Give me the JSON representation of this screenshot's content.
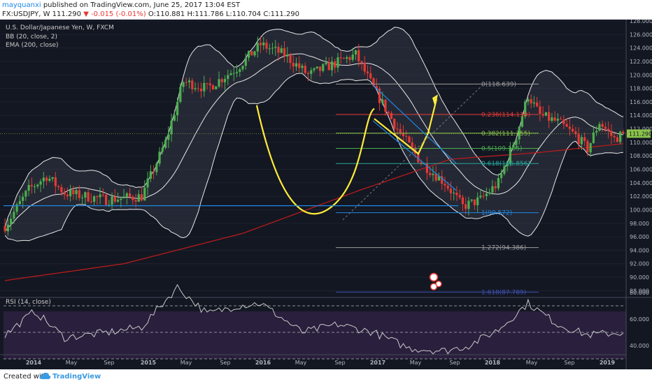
{
  "header": {
    "author": "mayquanxi",
    "published": "published on TradingView.com, June 25, 2017 13:04 EST",
    "symbol": "FX:USDJPY, W",
    "last": "111.290",
    "change": "▼ -0.015 (-0.01%)",
    "ohlc": "O:110.881 H:111.786 L:110.704 C:111.290"
  },
  "footer": {
    "created": "Created with",
    "brand": "TradingView"
  },
  "legend": {
    "title": "U.S. Dollar/Japanese Yen, W, FXCM",
    "bb": "BB (20, close, 2)",
    "ema": "EMA (200, close)",
    "rsi": "RSI (14, close)"
  },
  "colors": {
    "background": "#131722",
    "candle_up": "#4caf50",
    "candle_down": "#e53935",
    "ema": "#b71c1c",
    "bands": "#e8e8e8",
    "annotation": "#ffeb3b",
    "channel": "#1e88e5",
    "rsi_band": "#2a1f3d"
  },
  "chart_data": {
    "type": "candlestick",
    "price_axis": {
      "ylim": [
        87,
        128
      ],
      "ticks": [
        "128.000",
        "126.000",
        "124.000",
        "122.000",
        "120.000",
        "118.000",
        "116.000",
        "114.000",
        "112.000",
        "110.000",
        "108.000",
        "106.000",
        "104.000",
        "102.000",
        "100.000",
        "98.000",
        "96.000",
        "94.000",
        "92.000",
        "90.000",
        "88.000"
      ]
    },
    "time_axis": {
      "ticks": [
        "2014",
        "May",
        "Sep",
        "2015",
        "May",
        "Sep",
        "2016",
        "May",
        "Sep",
        "2017",
        "May",
        "Sep",
        "2018",
        "May",
        "Sep",
        "2019"
      ]
    },
    "current_price": "111.290",
    "price_anchors": [
      {
        "t": 0,
        "v": 97.6
      },
      {
        "t": 8,
        "v": 103
      },
      {
        "t": 14,
        "v": 105
      },
      {
        "t": 20,
        "v": 102.5
      },
      {
        "t": 34,
        "v": 101.5
      },
      {
        "t": 46,
        "v": 102
      },
      {
        "t": 54,
        "v": 110
      },
      {
        "t": 60,
        "v": 119
      },
      {
        "t": 68,
        "v": 118
      },
      {
        "t": 78,
        "v": 121
      },
      {
        "t": 86,
        "v": 124.5
      },
      {
        "t": 94,
        "v": 123
      },
      {
        "t": 102,
        "v": 120
      },
      {
        "t": 110,
        "v": 121.5
      },
      {
        "t": 118,
        "v": 123
      },
      {
        "t": 124,
        "v": 118
      },
      {
        "t": 132,
        "v": 112
      },
      {
        "t": 140,
        "v": 107
      },
      {
        "t": 148,
        "v": 104
      },
      {
        "t": 154,
        "v": 100.5
      },
      {
        "t": 160,
        "v": 101.5
      },
      {
        "t": 166,
        "v": 104
      },
      {
        "t": 172,
        "v": 111
      },
      {
        "t": 176,
        "v": 117
      },
      {
        "t": 180,
        "v": 114
      },
      {
        "t": 186,
        "v": 113
      },
      {
        "t": 192,
        "v": 111
      },
      {
        "t": 196,
        "v": 109
      },
      {
        "t": 200,
        "v": 113
      },
      {
        "t": 205,
        "v": 110.5
      },
      {
        "t": 208,
        "v": 111.3
      }
    ],
    "ema_anchors": [
      {
        "t": 0,
        "v": 89.5
      },
      {
        "t": 40,
        "v": 92
      },
      {
        "t": 80,
        "v": 96.5
      },
      {
        "t": 120,
        "v": 103
      },
      {
        "t": 150,
        "v": 107.5
      },
      {
        "t": 180,
        "v": 108.5
      },
      {
        "t": 208,
        "v": 109.8
      }
    ],
    "fibonacci": [
      {
        "level": "0",
        "price": 118.639,
        "label": "0(118.639)"
      },
      {
        "level": "0.236",
        "price": 114.139,
        "label": "0.236(114.139)"
      },
      {
        "level": "0.382",
        "price": 111.355,
        "label": "0.382(111.355)"
      },
      {
        "level": "0.5",
        "price": 109.105,
        "label": "0.5(109.105)"
      },
      {
        "level": "0.618",
        "price": 106.856,
        "label": "0.618(106.856)"
      },
      {
        "level": "1",
        "price": 99.572,
        "label": "1(99.572)"
      },
      {
        "level": "1.272",
        "price": 94.386,
        "label": "1.272(94.386)"
      },
      {
        "level": "1.618",
        "price": 87.789,
        "label": "1.618(87.789)"
      }
    ],
    "rsi": {
      "ticks": [
        "80.000",
        "60.000",
        "40.000"
      ],
      "overbought": 70,
      "oversold": 30,
      "anchors": [
        {
          "t": 0,
          "v": 48
        },
        {
          "t": 10,
          "v": 66
        },
        {
          "t": 20,
          "v": 46
        },
        {
          "t": 35,
          "v": 50
        },
        {
          "t": 46,
          "v": 54
        },
        {
          "t": 58,
          "v": 84
        },
        {
          "t": 68,
          "v": 64
        },
        {
          "t": 78,
          "v": 70
        },
        {
          "t": 86,
          "v": 72
        },
        {
          "t": 100,
          "v": 50
        },
        {
          "t": 112,
          "v": 56
        },
        {
          "t": 124,
          "v": 50
        },
        {
          "t": 136,
          "v": 38
        },
        {
          "t": 148,
          "v": 36
        },
        {
          "t": 156,
          "v": 40
        },
        {
          "t": 166,
          "v": 52
        },
        {
          "t": 176,
          "v": 72
        },
        {
          "t": 186,
          "v": 56
        },
        {
          "t": 196,
          "v": 48
        },
        {
          "t": 208,
          "v": 50
        }
      ]
    }
  }
}
